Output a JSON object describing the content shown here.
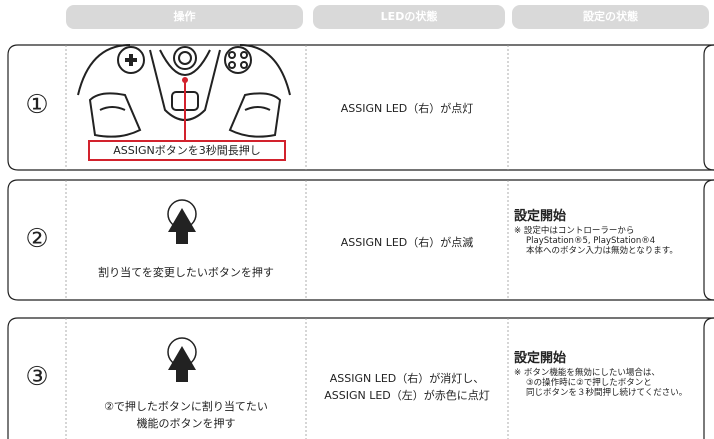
{
  "header": {
    "columns": [
      "操作",
      "LEDの状態",
      "設定の状態"
    ]
  },
  "rows": [
    {
      "step": "①",
      "operation": [
        "ASSIGNボタンを3秒間長押し"
      ],
      "led": [
        "ASSIGN LED（右）が点灯"
      ]
    },
    {
      "step": "②",
      "operation": [
        "割り当てを変更したいボタンを押す"
      ],
      "led": [
        "ASSIGN LED（右）が点滅"
      ],
      "setting": {
        "title": "設定開始",
        "notes": [
          "※ 設定中はコントローラーから",
          "PlayStation®5, PlayStation®4",
          "本体へのボタン入力は無効となります。"
        ]
      }
    },
    {
      "step": "③",
      "operation": [
        "②で押したボタンに割り当てたい",
        "機能のボタンを押す"
      ],
      "led": [
        "ASSIGN LED（右）が消灯し、",
        "ASSIGN LED（左）が赤色に点灯"
      ],
      "setting": {
        "title": "設定開始",
        "notes": [
          "※ ボタン機能を無効にしたい場合は、",
          "③の操作時に②で押したボタンと",
          "同じボタンを３秒間押し続けてください。"
        ]
      }
    }
  ]
}
